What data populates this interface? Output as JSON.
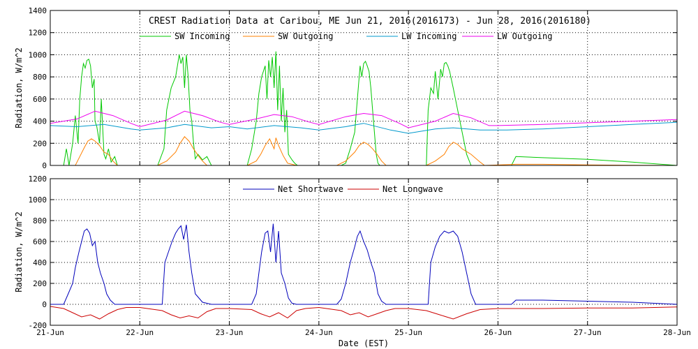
{
  "chart_data": [
    {
      "type": "line",
      "title": "CREST Radiation Data at Caribou, ME   Jun 21, 2016(2016173) - Jun 28, 2016(2016180)",
      "xlabel": "",
      "ylabel": "Radiation, W/m^2",
      "ylim": [
        0,
        1400
      ],
      "yticks": [
        0,
        200,
        400,
        600,
        800,
        1000,
        1200,
        1400
      ],
      "xlim": [
        0,
        7
      ],
      "grid": true,
      "legend": "top-center",
      "series": [
        {
          "name": "SW Incoming",
          "color": "#00c800",
          "x": [
            0.0,
            0.15,
            0.18,
            0.21,
            0.25,
            0.28,
            0.31,
            0.33,
            0.35,
            0.37,
            0.39,
            0.41,
            0.43,
            0.45,
            0.47,
            0.49,
            0.5,
            0.52,
            0.55,
            0.57,
            0.6,
            0.62,
            0.65,
            0.68,
            0.72,
            0.75,
            0.8,
            1.0,
            1.2,
            1.27,
            1.3,
            1.35,
            1.4,
            1.42,
            1.44,
            1.46,
            1.48,
            1.5,
            1.52,
            1.54,
            1.56,
            1.58,
            1.6,
            1.62,
            1.65,
            1.7,
            1.75,
            1.8,
            1.9,
            2.0,
            2.2,
            2.25,
            2.3,
            2.33,
            2.36,
            2.4,
            2.42,
            2.44,
            2.46,
            2.48,
            2.5,
            2.52,
            2.54,
            2.56,
            2.58,
            2.6,
            2.62,
            2.64,
            2.66,
            2.7,
            2.73,
            2.76,
            2.8,
            3.0,
            3.2,
            3.25,
            3.3,
            3.35,
            3.4,
            3.42,
            3.44,
            3.46,
            3.48,
            3.5,
            3.52,
            3.54,
            3.56,
            3.58,
            3.6,
            3.62,
            3.64,
            3.66,
            3.68,
            3.7,
            3.73,
            3.75,
            3.8,
            4.0,
            4.1,
            4.2,
            4.22,
            4.25,
            4.28,
            4.3,
            4.33,
            4.36,
            4.38,
            4.4,
            4.42,
            4.44,
            4.46,
            4.5,
            4.55,
            4.6,
            4.65,
            4.7,
            4.75,
            4.8,
            4.85,
            5.0,
            5.15,
            5.2,
            5.5,
            6.0,
            6.5,
            7.0
          ],
          "y": [
            0,
            0,
            150,
            0,
            200,
            450,
            200,
            600,
            800,
            920,
            880,
            950,
            960,
            900,
            700,
            780,
            400,
            350,
            200,
            600,
            100,
            60,
            150,
            30,
            80,
            0,
            0,
            0,
            0,
            150,
            500,
            700,
            800,
            900,
            1000,
            920,
            980,
            700,
            1000,
            800,
            500,
            400,
            200,
            60,
            100,
            50,
            80,
            0,
            0,
            0,
            0,
            150,
            400,
            650,
            800,
            900,
            600,
            950,
            800,
            980,
            700,
            1030,
            500,
            900,
            400,
            700,
            300,
            500,
            100,
            50,
            20,
            0,
            0,
            0,
            0,
            0,
            20,
            150,
            300,
            500,
            700,
            900,
            800,
            920,
            940,
            900,
            850,
            700,
            500,
            300,
            100,
            20,
            0,
            0,
            0,
            0,
            0,
            0,
            0,
            0,
            500,
            700,
            650,
            850,
            600,
            870,
            800,
            920,
            930,
            900,
            850,
            700,
            500,
            300,
            100,
            0,
            0,
            0,
            0,
            0,
            0,
            80,
            70,
            55,
            30,
            0
          ]
        },
        {
          "name": "SW Outgoing",
          "color": "#ff8000",
          "x": [
            0.0,
            0.28,
            0.33,
            0.38,
            0.42,
            0.46,
            0.5,
            0.55,
            0.6,
            0.65,
            0.7,
            0.75,
            1.2,
            1.3,
            1.4,
            1.45,
            1.5,
            1.55,
            1.6,
            1.65,
            1.7,
            1.75,
            2.2,
            2.3,
            2.35,
            2.4,
            2.45,
            2.5,
            2.52,
            2.55,
            2.6,
            2.65,
            2.7,
            2.75,
            3.2,
            3.3,
            3.4,
            3.45,
            3.5,
            3.55,
            3.6,
            3.65,
            3.7,
            3.75,
            4.2,
            4.3,
            4.4,
            4.45,
            4.5,
            4.55,
            4.6,
            4.7,
            4.8,
            4.85,
            5.2,
            5.5,
            6.0,
            6.5,
            7.0
          ],
          "y": [
            0,
            0,
            80,
            160,
            220,
            240,
            220,
            180,
            120,
            100,
            40,
            0,
            0,
            40,
            120,
            200,
            260,
            220,
            150,
            90,
            40,
            0,
            0,
            40,
            100,
            180,
            240,
            150,
            250,
            180,
            90,
            20,
            10,
            0,
            0,
            40,
            120,
            180,
            210,
            190,
            150,
            100,
            40,
            0,
            0,
            40,
            100,
            170,
            210,
            190,
            150,
            100,
            30,
            0,
            10,
            10,
            5,
            2,
            0
          ]
        },
        {
          "name": "LW Incoming",
          "color": "#0099cc",
          "x": [
            0.0,
            0.3,
            0.6,
            0.9,
            1.0,
            1.3,
            1.5,
            1.8,
            2.0,
            2.2,
            2.5,
            2.8,
            3.0,
            3.3,
            3.5,
            3.8,
            4.0,
            4.3,
            4.5,
            4.8,
            5.0,
            5.1,
            5.5,
            6.0,
            6.5,
            7.0
          ],
          "y": [
            360,
            350,
            370,
            330,
            320,
            340,
            370,
            340,
            350,
            330,
            360,
            340,
            320,
            350,
            380,
            320,
            290,
            330,
            340,
            320,
            320,
            320,
            330,
            350,
            370,
            390
          ]
        },
        {
          "name": "LW Outgoing",
          "color": "#ee00ee",
          "x": [
            0.0,
            0.3,
            0.5,
            0.7,
            0.9,
            1.0,
            1.3,
            1.5,
            1.7,
            1.9,
            2.0,
            2.3,
            2.5,
            2.7,
            2.9,
            3.0,
            3.3,
            3.5,
            3.7,
            3.9,
            4.0,
            4.3,
            4.5,
            4.7,
            4.9,
            5.0,
            5.5,
            6.0,
            6.5,
            7.0
          ],
          "y": [
            380,
            420,
            490,
            450,
            380,
            350,
            410,
            490,
            450,
            390,
            370,
            420,
            460,
            440,
            390,
            370,
            440,
            470,
            450,
            380,
            340,
            400,
            470,
            430,
            360,
            360,
            370,
            385,
            400,
            415
          ]
        }
      ]
    },
    {
      "type": "line",
      "title": "",
      "xlabel": "Date (EST)",
      "ylabel": "Radiation, W/m^2",
      "ylim": [
        -200,
        1200
      ],
      "yticks": [
        -200,
        0,
        200,
        400,
        600,
        800,
        1000,
        1200
      ],
      "xlim": [
        0,
        7
      ],
      "xticks": [
        "21-Jun",
        "22-Jun",
        "23-Jun",
        "24-Jun",
        "25-Jun",
        "26-Jun",
        "27-Jun",
        "28-Jun"
      ],
      "grid": true,
      "legend": "top-center",
      "series": [
        {
          "name": "Net Shortwave",
          "color": "#0000bb",
          "x": [
            0.0,
            0.15,
            0.2,
            0.25,
            0.28,
            0.32,
            0.35,
            0.38,
            0.41,
            0.44,
            0.47,
            0.5,
            0.53,
            0.56,
            0.6,
            0.63,
            0.67,
            0.72,
            0.8,
            1.0,
            1.25,
            1.28,
            1.32,
            1.36,
            1.4,
            1.43,
            1.46,
            1.49,
            1.52,
            1.55,
            1.58,
            1.62,
            1.66,
            1.7,
            1.75,
            1.8,
            2.0,
            2.2,
            2.25,
            2.3,
            2.33,
            2.36,
            2.4,
            2.43,
            2.46,
            2.49,
            2.52,
            2.55,
            2.58,
            2.62,
            2.66,
            2.7,
            2.75,
            2.8,
            3.0,
            3.2,
            3.25,
            3.3,
            3.35,
            3.4,
            3.43,
            3.46,
            3.5,
            3.54,
            3.58,
            3.62,
            3.66,
            3.7,
            3.75,
            3.8,
            4.0,
            4.22,
            4.25,
            4.3,
            4.35,
            4.4,
            4.45,
            4.5,
            4.55,
            4.6,
            4.65,
            4.7,
            4.75,
            4.8,
            5.0,
            5.15,
            5.2,
            5.5,
            6.0,
            6.5,
            7.0
          ],
          "y": [
            0,
            0,
            100,
            200,
            350,
            500,
            600,
            700,
            720,
            680,
            560,
            600,
            400,
            300,
            200,
            100,
            40,
            0,
            0,
            0,
            0,
            400,
            500,
            600,
            680,
            720,
            750,
            620,
            760,
            500,
            300,
            100,
            60,
            20,
            10,
            0,
            0,
            0,
            0,
            100,
            300,
            500,
            680,
            700,
            500,
            770,
            400,
            700,
            300,
            200,
            60,
            10,
            0,
            0,
            0,
            0,
            50,
            200,
            400,
            550,
            650,
            700,
            600,
            520,
            400,
            300,
            100,
            30,
            0,
            0,
            0,
            0,
            400,
            550,
            650,
            700,
            680,
            700,
            650,
            500,
            300,
            100,
            0,
            0,
            0,
            0,
            40,
            40,
            30,
            20,
            0
          ]
        },
        {
          "name": "Net Longwave",
          "color": "#cc0000",
          "x": [
            0.0,
            0.15,
            0.25,
            0.35,
            0.45,
            0.55,
            0.65,
            0.75,
            0.85,
            1.0,
            1.25,
            1.35,
            1.45,
            1.55,
            1.65,
            1.75,
            1.85,
            2.0,
            2.25,
            2.35,
            2.45,
            2.55,
            2.65,
            2.75,
            2.85,
            3.0,
            3.25,
            3.35,
            3.45,
            3.55,
            3.65,
            3.75,
            3.85,
            4.0,
            4.2,
            4.35,
            4.5,
            4.65,
            4.8,
            5.0,
            5.5,
            6.0,
            6.5,
            7.0
          ],
          "y": [
            -20,
            -40,
            -80,
            -120,
            -100,
            -140,
            -90,
            -50,
            -30,
            -30,
            -60,
            -100,
            -130,
            -110,
            -130,
            -70,
            -40,
            -40,
            -50,
            -90,
            -120,
            -80,
            -130,
            -60,
            -40,
            -30,
            -60,
            -100,
            -80,
            -120,
            -90,
            -60,
            -40,
            -40,
            -60,
            -100,
            -140,
            -90,
            -50,
            -40,
            -40,
            -35,
            -35,
            -25
          ]
        }
      ]
    }
  ]
}
